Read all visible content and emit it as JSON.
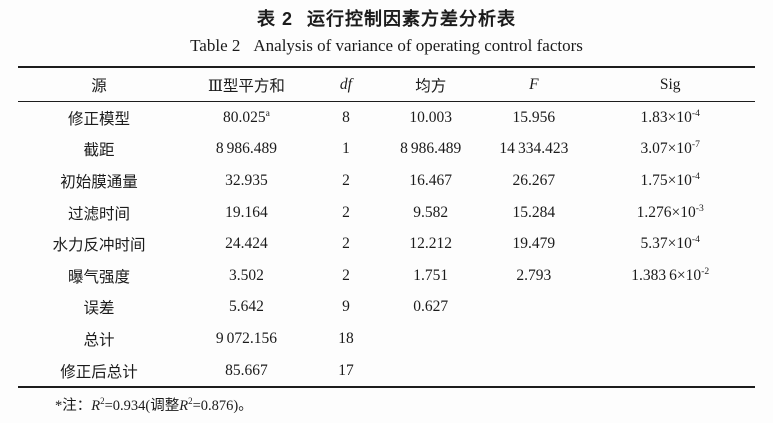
{
  "page": {
    "background": "#fdfdfd",
    "text_color": "#1b1b1b",
    "rule_color": "#1d1d1d"
  },
  "title": {
    "zh_label": "表 2",
    "zh_text": "运行控制因素方差分析表",
    "en_label": "Table 2",
    "en_text": "Analysis of variance of operating control factors"
  },
  "table": {
    "columns": [
      {
        "label": "源",
        "italic": false
      },
      {
        "label": "Ⅲ型平方和",
        "italic": false
      },
      {
        "label": "df",
        "italic": true
      },
      {
        "label": "均方",
        "italic": false
      },
      {
        "label": "F",
        "italic": true
      },
      {
        "label": "Sig",
        "italic": false
      }
    ],
    "rows": [
      {
        "cells": [
          "修正模型",
          "80.025^{a}",
          "8",
          "10.003",
          "15.956",
          "1.83×10^{-4}"
        ]
      },
      {
        "cells": [
          "截距",
          "8 986.489",
          "1",
          "8 986.489",
          "14 334.423",
          "3.07×10^{-7}"
        ]
      },
      {
        "cells": [
          "初始膜通量",
          "32.935",
          "2",
          "16.467",
          "26.267",
          "1.75×10^{-4}"
        ]
      },
      {
        "cells": [
          "过滤时间",
          "19.164",
          "2",
          "9.582",
          "15.284",
          "1.276×10^{-3}"
        ]
      },
      {
        "cells": [
          "水力反冲时间",
          "24.424",
          "2",
          "12.212",
          "19.479",
          "5.37×10^{-4}"
        ]
      },
      {
        "cells": [
          "曝气强度",
          "3.502",
          "2",
          "1.751",
          "2.793",
          "1.383 6×10^{-2}"
        ]
      },
      {
        "cells": [
          "误差",
          "5.642",
          "9",
          "0.627",
          "",
          ""
        ]
      },
      {
        "cells": [
          "总计",
          "9 072.156",
          "18",
          "",
          "",
          ""
        ]
      },
      {
        "cells": [
          "修正后总计",
          "85.667",
          "17",
          "",
          "",
          ""
        ]
      }
    ]
  },
  "footnote": "*注：~R~^{2}=0.934(调整~R~^{2}=0.876)。"
}
